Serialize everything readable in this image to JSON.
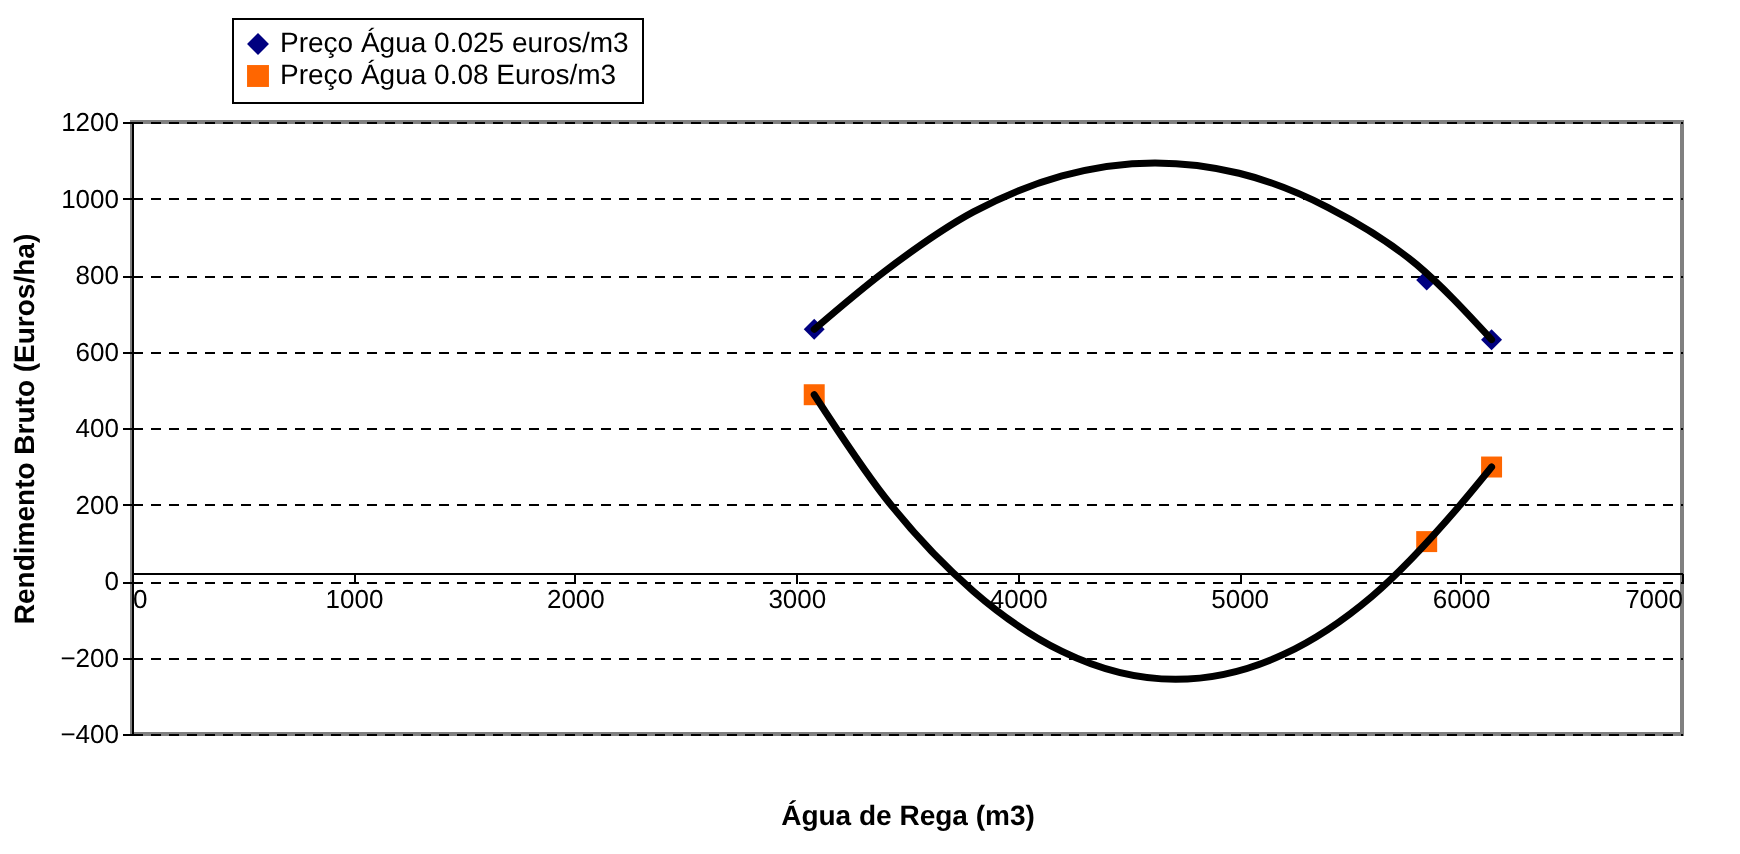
{
  "chart_data": {
    "type": "scatter",
    "xlabel": "Água de Rega (m3)",
    "ylabel": "Rendimento Bruto (Euros/ha)",
    "xlim": [
      0,
      7000
    ],
    "xticks": [
      0,
      1000,
      2000,
      3000,
      4000,
      5000,
      6000,
      7000
    ],
    "ylim": [
      -400,
      1200
    ],
    "yticks": [
      -400,
      -200,
      0,
      200,
      400,
      600,
      800,
      1000,
      1200
    ],
    "grid": "y",
    "legend": "top left",
    "series": [
      {
        "name": "Preço Água 0.025 euros/m3",
        "marker": "diamond",
        "color": "#000080",
        "x": [
          3081,
          5847,
          6140
        ],
        "values": [
          658,
          787,
          631
        ]
      },
      {
        "name": "Preço Água 0.08 Euros/m3",
        "marker": "square",
        "color": "#ff6600",
        "x": [
          3081,
          5847,
          6140
        ],
        "values": [
          487,
          103,
          298
        ]
      },
      {
        "type": "line",
        "marker": "none",
        "line_style": "solid",
        "color": "#000000",
        "x": [
          3081,
          3400,
          3800,
          4200,
          4620,
          5000,
          5400,
          5800,
          6140
        ],
        "values": [
          658,
          810,
          965,
          1059,
          1093,
          1066,
          977,
          828,
          631
        ]
      },
      {
        "type": "line",
        "marker": "none",
        "line_style": "solid",
        "color": "#000000",
        "x": [
          3081,
          3400,
          3800,
          4200,
          4713,
          5200,
          5600,
          6000,
          6140
        ],
        "values": [
          487,
          219,
          -27,
          -184,
          -257,
          -192,
          -40,
          200,
          298
        ]
      }
    ]
  }
}
